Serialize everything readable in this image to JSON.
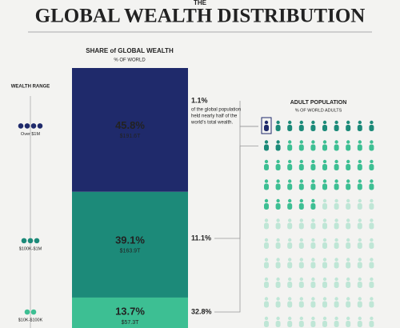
{
  "chart_data": {
    "type": "stacked_column",
    "supertitle": "THE",
    "title": "GLOBAL WEALTH DISTRIBUTION",
    "subtitle": "SHARE of GLOBAL WEALTH",
    "subtitle_unit": "% OF WORLD",
    "range_label": "WEALTH RANGE",
    "categories": [
      "Over $1M",
      "$100K-$1M",
      "$10K-$100K"
    ],
    "values": [
      45.8,
      39.1,
      13.7
    ],
    "value_labels": [
      "45.8%",
      "39.1%",
      "13.7%"
    ],
    "amounts": [
      "$191.6T",
      "$163.9T",
      "$57.3T"
    ],
    "colors": [
      "#1f2a6b",
      "#1c8a79",
      "#3dbf93"
    ],
    "annotation": [
      "of the global population",
      "held nearly half of the",
      "world's total wealth."
    ],
    "population": {
      "title": "ADULT POPULATION",
      "unit": "% OF WORLD ADULTS",
      "values": [
        1.1,
        11.1,
        32.8
      ],
      "value_labels": [
        "1.1%",
        "11.1%",
        "32.8%"
      ],
      "colors": [
        "#1f2a6b",
        "#1c8a79",
        "#3dbf93"
      ]
    }
  }
}
